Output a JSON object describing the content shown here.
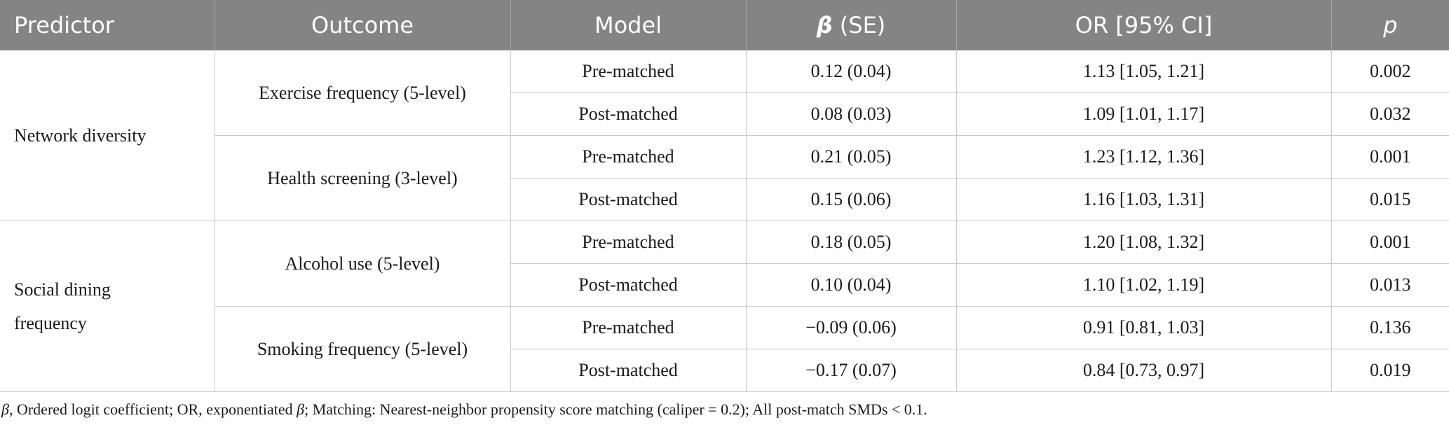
{
  "headers": {
    "predictor": "Predictor",
    "outcome": "Outcome",
    "model": "Model",
    "beta_symbol": "β",
    "beta_rest": " (SE)",
    "or": "OR [95% CI]",
    "p": "p"
  },
  "groups": [
    {
      "predictor": "Network diversity",
      "outcomes": [
        {
          "outcome": "Exercise frequency (5-level)",
          "rows": [
            {
              "model": "Pre-matched",
              "beta": "0.12 (0.04)",
              "or": "1.13 [1.05, 1.21]",
              "p": "0.002"
            },
            {
              "model": "Post-matched",
              "beta": "0.08 (0.03)",
              "or": "1.09 [1.01, 1.17]",
              "p": "0.032"
            }
          ]
        },
        {
          "outcome": "Health screening (3-level)",
          "rows": [
            {
              "model": "Pre-matched",
              "beta": "0.21 (0.05)",
              "or": "1.23 [1.12, 1.36]",
              "p": "0.001"
            },
            {
              "model": "Post-matched",
              "beta": "0.15 (0.06)",
              "or": "1.16 [1.03, 1.31]",
              "p": "0.015"
            }
          ]
        }
      ]
    },
    {
      "predictor": "Social dining frequency",
      "outcomes": [
        {
          "outcome": "Alcohol use (5-level)",
          "rows": [
            {
              "model": "Pre-matched",
              "beta": "0.18 (0.05)",
              "or": "1.20 [1.08, 1.32]",
              "p": "0.001"
            },
            {
              "model": "Post-matched",
              "beta": "0.10 (0.04)",
              "or": "1.10 [1.02, 1.19]",
              "p": "0.013"
            }
          ]
        },
        {
          "outcome": "Smoking frequency (5-level)",
          "rows": [
            {
              "model": "Pre-matched",
              "beta": "−0.09 (0.06)",
              "or": "0.91 [0.81, 1.03]",
              "p": "0.136"
            },
            {
              "model": "Post-matched",
              "beta": "−0.17 (0.07)",
              "or": "0.84 [0.73, 0.97]",
              "p": "0.019"
            }
          ]
        }
      ]
    }
  ],
  "footnote": {
    "beta1": "β",
    "text1": ", Ordered logit coefficient; OR, exponentiated ",
    "beta2": "β",
    "text2": "; Matching: Nearest-neighbor propensity score matching (caliper = 0.2); All post-match SMDs < 0.1."
  }
}
